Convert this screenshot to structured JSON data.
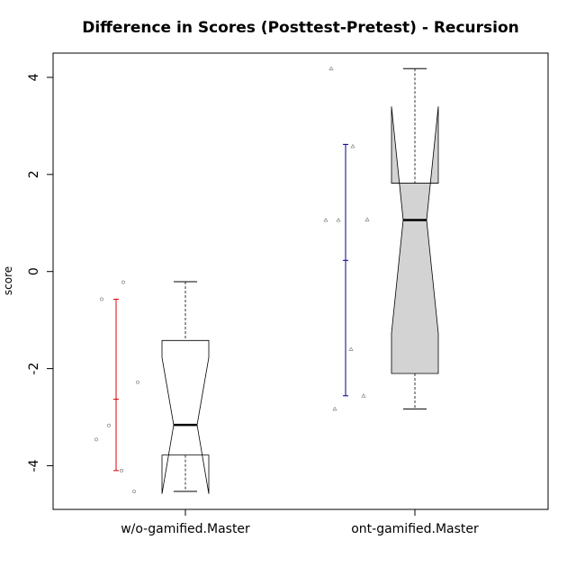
{
  "chart_data": {
    "type": "boxplot",
    "title": "Difference in Scores (Posttest-Pretest) - Recursion",
    "xlabel": "",
    "ylabel": "score",
    "ylim": [
      -4.9,
      4.5
    ],
    "yticks": [
      -4,
      -2,
      0,
      2,
      4
    ],
    "grid": false,
    "notched": true,
    "categories": [
      "w/o-gamified.Master",
      "ont-gamified.Master"
    ],
    "groups": [
      {
        "category": "w/o-gamified.Master",
        "fill": "#ffffff",
        "whisker_low": -4.53,
        "q1": -3.78,
        "median": -3.16,
        "q3": -1.42,
        "whisker_high": -0.21,
        "notch_low": -4.58,
        "notch_high": -1.77,
        "mean": -2.63,
        "mean_interval": [
          -4.1,
          -0.57
        ],
        "mean_color": "#e00000",
        "jitter_points": [
          -0.57,
          -0.22,
          -2.28,
          -3.17,
          -3.46,
          -4.1,
          -4.53
        ],
        "point_marker": "circle"
      },
      {
        "category": "ont-gamified.Master",
        "fill": "#d3d3d3",
        "whisker_low": -2.83,
        "q1": -2.1,
        "median": 1.06,
        "q3": 1.82,
        "whisker_high": 4.18,
        "notch_low": -1.27,
        "notch_high": 3.4,
        "mean": 0.23,
        "mean_interval": [
          -2.56,
          2.62
        ],
        "mean_color": "#00008b",
        "jitter_points": [
          4.18,
          2.58,
          1.07,
          1.06,
          1.06,
          -1.6,
          -2.56,
          -2.83
        ],
        "point_marker": "triangle"
      }
    ]
  }
}
